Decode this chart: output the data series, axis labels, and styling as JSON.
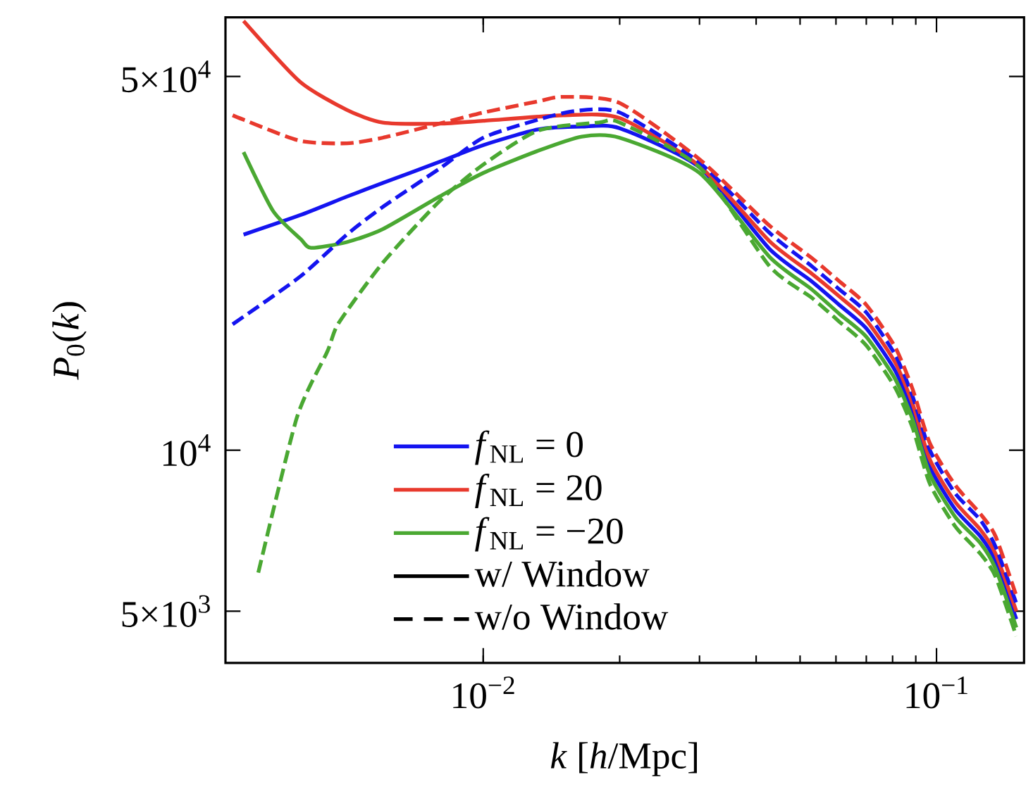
{
  "chart_data": {
    "type": "line",
    "xlabel": "*k* [*h*/Mpc]",
    "ylabel": "*P*$_{0}$(*k*)",
    "log": "xy",
    "legend": "bottom left",
    "grid": false,
    "xlim": [
      0.0027,
      0.156
    ],
    "ylim": [
      4000,
      64500
    ],
    "xticks": [
      {
        "value": 0.01,
        "label": "10$^{−2}$"
      },
      {
        "value": 0.1,
        "label": "10$^{−1}$"
      }
    ],
    "yticks": [
      {
        "value": 5000,
        "label": "5×10$^{3}$"
      },
      {
        "value": 10000,
        "label": "10$^{4}$"
      },
      {
        "value": 50000,
        "label": "5×10$^{4}$"
      }
    ],
    "annotations": [
      "w/ Window",
      "w/o Window"
    ],
    "series": [
      {
        "name": "*f*$_{NL}$ = 0",
        "color": "#1414f0",
        "line_style": "solid",
        "x": [
          0.00296,
          0.00394,
          0.005,
          0.006,
          0.008,
          0.01,
          0.0132,
          0.0165,
          0.02,
          0.03,
          0.0428,
          0.053,
          0.061,
          0.07,
          0.081,
          0.0886,
          0.0967,
          0.11,
          0.125,
          0.135,
          0.15
        ],
        "values": [
          25300,
          27500,
          29800,
          31600,
          34600,
          37200,
          39800,
          40300,
          40000,
          33800,
          23800,
          20700,
          18700,
          16900,
          14100,
          11800,
          9300,
          7750,
          6900,
          6200,
          4830
        ]
      },
      {
        "name": "*f*$_{NL}$ = 20",
        "color": "#e8392d",
        "line_style": "solid",
        "x": [
          0.00296,
          0.00394,
          0.005,
          0.006,
          0.008,
          0.01,
          0.015,
          0.02,
          0.03,
          0.0428,
          0.053,
          0.061,
          0.07,
          0.081,
          0.0886,
          0.0967,
          0.11,
          0.125,
          0.135,
          0.15
        ],
        "values": [
          63500,
          48900,
          43300,
          41000,
          40800,
          41300,
          42300,
          41800,
          34000,
          24600,
          21400,
          19400,
          17500,
          14600,
          12200,
          9600,
          8000,
          7100,
          6400,
          5000
        ]
      },
      {
        "name": "*f*$_{NL}$ = −20",
        "color": "#4aa832",
        "line_style": "solid",
        "x": [
          0.00296,
          0.00344,
          0.00396,
          0.00417,
          0.005,
          0.006,
          0.008,
          0.01,
          0.0132,
          0.0165,
          0.02,
          0.03,
          0.0428,
          0.053,
          0.061,
          0.07,
          0.081,
          0.0886,
          0.0967,
          0.11,
          0.125,
          0.135,
          0.15
        ],
        "values": [
          36100,
          28000,
          24800,
          23900,
          24500,
          25900,
          29800,
          33000,
          36300,
          38600,
          38400,
          33000,
          23000,
          20000,
          18000,
          16300,
          13600,
          11400,
          9000,
          7500,
          6700,
          6000,
          4660
        ]
      },
      {
        "color": "#1414f0",
        "line_style": "dashed",
        "x": [
          0.0028,
          0.00394,
          0.005,
          0.006,
          0.008,
          0.01,
          0.0132,
          0.016,
          0.02,
          0.03,
          0.0428,
          0.053,
          0.061,
          0.07,
          0.081,
          0.0886,
          0.0967,
          0.11,
          0.125,
          0.135,
          0.15
        ],
        "values": [
          17200,
          21100,
          25300,
          28500,
          33600,
          38400,
          41500,
          43100,
          42800,
          34500,
          25500,
          22100,
          20000,
          18100,
          15100,
          12600,
          10000,
          8300,
          7400,
          6600,
          5170
        ]
      },
      {
        "color": "#e8392d",
        "line_style": "dashed",
        "x": [
          0.0028,
          0.00296,
          0.00394,
          0.005,
          0.006,
          0.008,
          0.01,
          0.0132,
          0.015,
          0.02,
          0.03,
          0.0428,
          0.053,
          0.061,
          0.07,
          0.081,
          0.0886,
          0.0967,
          0.11,
          0.125,
          0.135,
          0.15
        ],
        "values": [
          42300,
          41500,
          37900,
          37500,
          38400,
          40800,
          42800,
          44900,
          45800,
          44600,
          35000,
          26300,
          22900,
          20700,
          18700,
          15600,
          13000,
          10300,
          8600,
          7600,
          6900,
          5340
        ]
      },
      {
        "color": "#4aa832",
        "line_style": "dashed",
        "x": [
          0.00319,
          0.00388,
          0.00453,
          0.0048,
          0.006,
          0.008,
          0.01,
          0.0132,
          0.018,
          0.02,
          0.03,
          0.0428,
          0.053,
          0.061,
          0.07,
          0.081,
          0.0886,
          0.0967,
          0.11,
          0.125,
          0.135,
          0.15
        ],
        "values": [
          5900,
          11500,
          15300,
          17300,
          22400,
          29200,
          34200,
          39600,
          41000,
          41000,
          33800,
          22100,
          19300,
          17400,
          15700,
          13100,
          11000,
          8650,
          7200,
          6400,
          5800,
          4490
        ]
      }
    ]
  }
}
